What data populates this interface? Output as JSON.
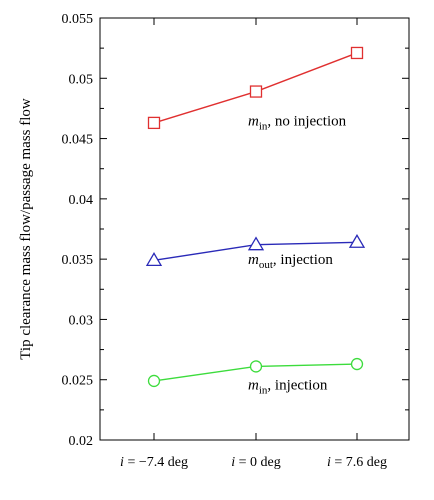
{
  "chart_data": {
    "type": "line",
    "ylabel": "Tip clearance mass flow/passage mass flow",
    "ylim": [
      0.02,
      0.055
    ],
    "yticks": [
      "0.02",
      "0.025",
      "0.03",
      "0.035",
      "0.04",
      "0.045",
      "0.05",
      "0.055"
    ],
    "categories": [
      {
        "var": "i",
        "text": " = −7.4 deg"
      },
      {
        "var": "i",
        "text": " = 0 deg"
      },
      {
        "var": "i",
        "text": " = 7.6 deg"
      }
    ],
    "series": [
      {
        "key": "min_no_injection",
        "values": [
          0.0463,
          0.0489,
          0.0521
        ],
        "color": "#e03030",
        "marker": "square",
        "label": {
          "var": "m",
          "sub": "in",
          "rest": ", no injection"
        }
      },
      {
        "key": "mout_injection",
        "values": [
          0.0349,
          0.0362,
          0.0364
        ],
        "color": "#2a2ab8",
        "marker": "triangle",
        "label": {
          "var": "m",
          "sub": "out",
          "rest": ", injection"
        }
      },
      {
        "key": "min_injection",
        "values": [
          0.0249,
          0.0261,
          0.0263
        ],
        "color": "#3cdc3c",
        "marker": "circle",
        "label": {
          "var": "m",
          "sub": "in",
          "rest": ", injection"
        }
      }
    ],
    "grid": false,
    "legend": "inline annotations"
  }
}
